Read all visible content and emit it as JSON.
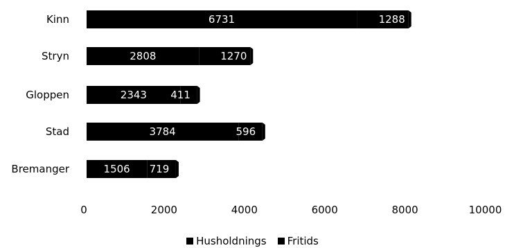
{
  "chart_data": {
    "type": "bar",
    "orientation": "horizontal",
    "stacked": true,
    "categories": [
      "Kinn",
      "Stryn",
      "Gloppen",
      "Stad",
      "Bremanger"
    ],
    "series": [
      {
        "name": "Husholdnings",
        "values": [
          6731,
          2808,
          2343,
          3784,
          1506
        ],
        "color": "#000000"
      },
      {
        "name": "Fritids",
        "values": [
          1288,
          1270,
          411,
          596,
          719
        ],
        "color": "#000000"
      }
    ],
    "xlim": [
      0,
      10000
    ],
    "x_ticks": [
      0,
      2000,
      4000,
      6000,
      8000,
      10000
    ],
    "data_label_color": "#ffffff",
    "grid": false,
    "legend_position": "bottom"
  }
}
